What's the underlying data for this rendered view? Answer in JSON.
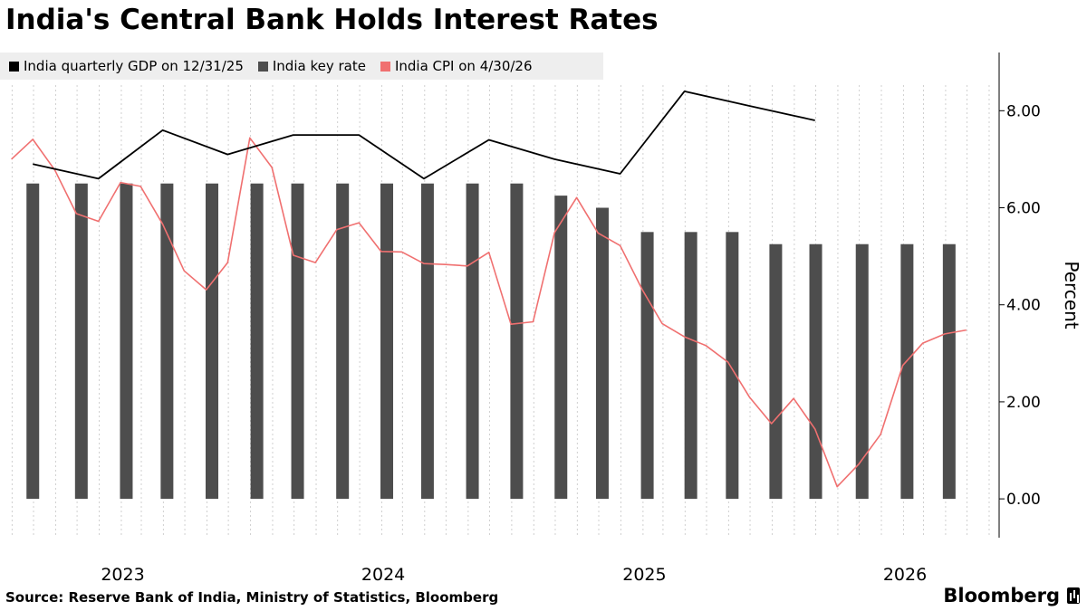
{
  "title": "India's Central Bank Holds Interest Rates",
  "source": "Source: Reserve Bank of India, Ministry of Statistics, Bloomberg",
  "brand": "Bloomberg",
  "chart_data": {
    "type": "bar+line",
    "ylabel": "Percent",
    "ylim": [
      -0.8,
      9.2
    ],
    "yticks": [
      0,
      2,
      4,
      6,
      8
    ],
    "ytick_labels": [
      "0.00",
      "2.00",
      "4.00",
      "6.00",
      "8.00"
    ],
    "xlim": [
      "2022-08-15",
      "2026-06-15"
    ],
    "xticks": [
      {
        "date": "2023-01-01",
        "label": "2023"
      },
      {
        "date": "2024-01-01",
        "label": "2024"
      },
      {
        "date": "2025-01-01",
        "label": "2025"
      },
      {
        "date": "2026-01-01",
        "label": "2026"
      }
    ],
    "grid": "vertical-dotted",
    "legend_placement": "top-left",
    "series": [
      {
        "name": "India quarterly GDP on 12/31/25",
        "kind": "line",
        "color": "#000000",
        "x": [
          "2022-09-30",
          "2022-12-31",
          "2023-03-31",
          "2023-06-30",
          "2023-09-30",
          "2023-12-31",
          "2024-03-31",
          "2024-06-30",
          "2024-09-30",
          "2024-12-31",
          "2025-03-31",
          "2025-06-30",
          "2025-09-30"
        ],
        "y": [
          6.9,
          6.6,
          7.6,
          7.1,
          7.5,
          7.5,
          6.6,
          7.4,
          7.0,
          6.7,
          8.4,
          8.1,
          7.8
        ]
      },
      {
        "name": "India key rate",
        "kind": "bar",
        "color": "#4d4d4d",
        "x": [
          "2022-09-30",
          "2022-12-07",
          "2023-02-08",
          "2023-04-06",
          "2023-06-08",
          "2023-08-10",
          "2023-10-06",
          "2023-12-08",
          "2024-02-08",
          "2024-04-05",
          "2024-06-07",
          "2024-08-08",
          "2024-10-09",
          "2024-12-06",
          "2025-02-07",
          "2025-04-09",
          "2025-06-06",
          "2025-08-06",
          "2025-10-01",
          "2025-12-05",
          "2026-02-06",
          "2026-04-06"
        ],
        "y": [
          6.5,
          6.5,
          6.5,
          6.5,
          6.5,
          6.5,
          6.5,
          6.5,
          6.5,
          6.5,
          6.5,
          6.5,
          6.25,
          6.0,
          5.5,
          5.5,
          5.5,
          5.25,
          5.25,
          5.25,
          5.25,
          5.25
        ]
      },
      {
        "name": "India CPI on 4/30/26",
        "kind": "line",
        "color": "#f07070",
        "x": [
          "2022-08-31",
          "2022-09-30",
          "2022-10-31",
          "2022-11-30",
          "2022-12-31",
          "2023-01-31",
          "2023-02-28",
          "2023-03-31",
          "2023-04-30",
          "2023-05-31",
          "2023-06-30",
          "2023-07-31",
          "2023-08-31",
          "2023-09-30",
          "2023-10-31",
          "2023-11-30",
          "2023-12-31",
          "2024-01-31",
          "2024-02-29",
          "2024-03-31",
          "2024-04-30",
          "2024-05-31",
          "2024-06-30",
          "2024-07-31",
          "2024-08-31",
          "2024-09-30",
          "2024-10-31",
          "2024-11-30",
          "2024-12-31",
          "2025-01-31",
          "2025-02-28",
          "2025-03-31",
          "2025-04-30",
          "2025-05-31",
          "2025-06-30",
          "2025-07-31",
          "2025-08-31",
          "2025-09-30",
          "2025-10-31",
          "2025-11-30",
          "2025-12-31",
          "2026-01-31",
          "2026-02-28",
          "2026-03-31",
          "2026-04-30"
        ],
        "y": [
          7.0,
          7.41,
          6.77,
          5.88,
          5.72,
          6.52,
          6.44,
          5.66,
          4.7,
          4.31,
          4.87,
          7.44,
          6.83,
          5.02,
          4.87,
          5.55,
          5.69,
          5.1,
          5.09,
          4.85,
          4.83,
          4.8,
          5.08,
          3.6,
          3.65,
          5.49,
          6.21,
          5.48,
          5.22,
          4.31,
          3.61,
          3.34,
          3.16,
          2.82,
          2.1,
          1.55,
          2.07,
          1.44,
          0.25,
          0.71,
          1.33,
          2.75,
          3.21,
          3.4,
          3.48
        ]
      }
    ]
  }
}
